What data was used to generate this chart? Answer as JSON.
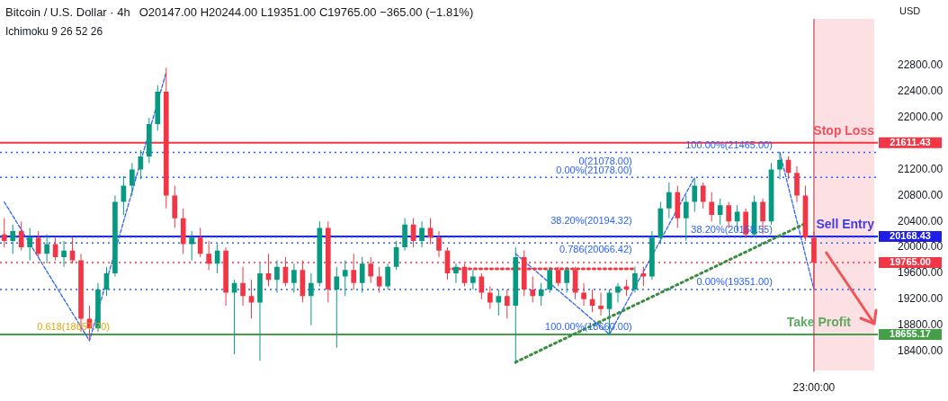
{
  "chart_data": {
    "type": "candlestick",
    "title": "Bitcoin / U.S. Dollar · 4h",
    "ylabel": "USD",
    "annotations": [
      "O20147.00 H20244.00 L19351.00 C19765.00 −365.00 (−1.81%)",
      "Ichimoku 9 26 52 26",
      "21611.43",
      "20168.43",
      "18655.17",
      "19765.00",
      {
        "text": "0(21078.00)",
        "y": 21078
      },
      {
        "text": "38.20%(20194.32)",
        "y": 20194.32
      },
      {
        "text": "100.00%(18660.00)",
        "y": 18660
      },
      {
        "text": "0.618(18657.70)",
        "y": 18657.7
      }
    ],
    "categories": [
      null,
      null,
      null,
      null,
      null,
      null,
      null,
      null,
      null,
      null,
      null,
      null,
      null,
      null,
      null,
      null,
      null,
      null,
      null,
      null,
      null,
      null,
      null,
      null,
      null,
      null,
      null,
      null,
      null,
      null,
      null,
      null,
      null,
      null,
      null,
      null,
      null,
      null,
      null,
      null,
      null,
      null,
      null,
      null,
      null,
      null,
      null,
      null,
      null,
      null,
      null,
      null,
      null,
      null,
      null,
      null,
      null,
      null,
      null,
      null,
      null,
      null,
      null,
      null,
      null,
      null,
      null,
      null,
      null,
      null,
      null,
      null,
      null,
      null,
      null,
      null,
      null,
      null,
      null,
      null,
      null,
      null,
      null,
      null,
      null,
      null,
      null,
      null,
      null,
      null,
      null,
      null,
      null,
      null,
      null,
      "23:00:00",
      null,
      null,
      null,
      null,
      null,
      null,
      null
    ],
    "ohlc": [
      [
        20200,
        20450,
        20000,
        20100
      ],
      [
        20100,
        20350,
        19900,
        20250
      ],
      [
        20250,
        20400,
        19950,
        20000
      ],
      [
        20000,
        20300,
        19800,
        20150
      ],
      [
        20150,
        20250,
        19850,
        19900
      ],
      [
        19900,
        20200,
        19750,
        20050
      ],
      [
        20050,
        20150,
        19800,
        19850
      ],
      [
        19850,
        20100,
        19700,
        19950
      ],
      [
        19950,
        20150,
        19750,
        19800
      ],
      [
        19800,
        19900,
        18700,
        18900
      ],
      [
        18900,
        19100,
        18560,
        18750
      ],
      [
        18750,
        19450,
        18700,
        19350
      ],
      [
        19350,
        19700,
        19250,
        19600
      ],
      [
        19600,
        20800,
        19550,
        20700
      ],
      [
        20700,
        21100,
        20500,
        20950
      ],
      [
        20950,
        21300,
        20800,
        21200
      ],
      [
        21200,
        21500,
        21050,
        21400
      ],
      [
        21400,
        22000,
        21300,
        21900
      ],
      [
        21900,
        22500,
        21800,
        22400
      ],
      [
        22400,
        22770,
        20600,
        20800
      ],
      [
        20800,
        20950,
        20300,
        20450
      ],
      [
        20450,
        20600,
        19900,
        20050
      ],
      [
        20050,
        20250,
        19800,
        20150
      ],
      [
        20150,
        20300,
        19850,
        19900
      ],
      [
        19900,
        20100,
        19650,
        19750
      ],
      [
        19750,
        20050,
        19600,
        19950
      ],
      [
        19950,
        20000,
        19100,
        19300
      ],
      [
        19300,
        19500,
        18350,
        19450
      ],
      [
        19450,
        19700,
        19100,
        19250
      ],
      [
        19250,
        19500,
        18900,
        19150
      ],
      [
        19150,
        19750,
        18250,
        19600
      ],
      [
        19600,
        19900,
        19400,
        19500
      ],
      [
        19500,
        19800,
        19300,
        19700
      ],
      [
        19700,
        19850,
        19400,
        19450
      ],
      [
        19450,
        19750,
        19300,
        19650
      ],
      [
        19650,
        19800,
        19150,
        19250
      ],
      [
        19250,
        19600,
        18800,
        19450
      ],
      [
        19450,
        20400,
        19400,
        20300
      ],
      [
        20300,
        20400,
        19150,
        19350
      ],
      [
        19350,
        19700,
        18450,
        19550
      ],
      [
        19550,
        19800,
        19250,
        19650
      ],
      [
        19650,
        19900,
        19350,
        19450
      ],
      [
        19450,
        19850,
        19300,
        19750
      ],
      [
        19750,
        19850,
        19450,
        19550
      ],
      [
        19550,
        19700,
        19300,
        19400
      ],
      [
        19400,
        19750,
        19350,
        19700
      ],
      [
        19700,
        20100,
        19650,
        20000
      ],
      [
        20000,
        20450,
        19950,
        20350
      ],
      [
        20350,
        20450,
        20000,
        20100
      ],
      [
        20100,
        20400,
        20000,
        20300
      ],
      [
        20300,
        20450,
        20050,
        20150
      ],
      [
        20150,
        20250,
        19850,
        19950
      ],
      [
        19950,
        20000,
        19500,
        19600
      ],
      [
        19600,
        19750,
        19450,
        19700
      ],
      [
        19700,
        19750,
        19400,
        19450
      ],
      [
        19450,
        19650,
        19350,
        19550
      ],
      [
        19550,
        19600,
        19200,
        19300
      ],
      [
        19300,
        19400,
        19050,
        19150
      ],
      [
        19150,
        19350,
        18950,
        19250
      ],
      [
        19250,
        19350,
        18900,
        19100
      ],
      [
        19100,
        20000,
        18200,
        19850
      ],
      [
        19850,
        19950,
        19250,
        19350
      ],
      [
        19350,
        19550,
        19150,
        19250
      ],
      [
        19250,
        19450,
        19100,
        19350
      ],
      [
        19350,
        19700,
        19300,
        19650
      ],
      [
        19650,
        19700,
        19400,
        19450
      ],
      [
        19450,
        19700,
        19300,
        19650
      ],
      [
        19650,
        19700,
        19200,
        19300
      ],
      [
        19300,
        19450,
        19100,
        19200
      ],
      [
        19200,
        19350,
        19000,
        19100
      ],
      [
        19100,
        19300,
        18950,
        19050
      ],
      [
        19050,
        19350,
        18660,
        19300
      ],
      [
        19300,
        19450,
        19150,
        19400
      ],
      [
        19400,
        19500,
        19250,
        19350
      ],
      [
        19350,
        19700,
        19300,
        19600
      ],
      [
        19600,
        19700,
        19400,
        19550
      ],
      [
        19550,
        20250,
        19500,
        20150
      ],
      [
        20150,
        20700,
        20050,
        20600
      ],
      [
        20600,
        21000,
        20450,
        20850
      ],
      [
        20850,
        20950,
        20300,
        20450
      ],
      [
        20450,
        20800,
        20100,
        20700
      ],
      [
        20700,
        21078,
        20550,
        20950
      ],
      [
        20950,
        21000,
        20600,
        20700
      ],
      [
        20700,
        20850,
        20400,
        20500
      ],
      [
        20500,
        20750,
        20350,
        20650
      ],
      [
        20650,
        20700,
        20300,
        20400
      ],
      [
        20400,
        20650,
        20250,
        20550
      ],
      [
        20550,
        20600,
        20150,
        20200
      ],
      [
        20200,
        20800,
        20150,
        20700
      ],
      [
        20700,
        20750,
        20200,
        20400
      ],
      [
        20400,
        21300,
        20350,
        21200
      ],
      [
        21200,
        21465,
        21050,
        21350
      ],
      [
        21350,
        21400,
        21050,
        21150
      ],
      [
        21150,
        21250,
        20700,
        20800
      ],
      [
        20800,
        20950,
        20100,
        20150
      ],
      [
        20147,
        20244,
        19351,
        19765
      ],
      null,
      null,
      null,
      null,
      null,
      null,
      null
    ],
    "colors": [
      "#f23645",
      "#089981",
      "#f23645",
      "#089981",
      "#f23645",
      "#089981",
      "#f23645",
      "#089981",
      "#f23645",
      "#f23645",
      "#f23645",
      "#089981",
      "#089981",
      "#089981",
      "#089981",
      "#089981",
      "#089981",
      "#089981",
      "#089981",
      "#f23645",
      "#f23645",
      "#f23645",
      "#089981",
      "#f23645",
      "#f23645",
      "#089981",
      "#f23645",
      "#089981",
      "#f23645",
      "#f23645",
      "#089981",
      "#f23645",
      "#089981",
      "#f23645",
      "#089981",
      "#f23645",
      "#089981",
      "#089981",
      "#f23645",
      "#089981",
      "#089981",
      "#f23645",
      "#089981",
      "#f23645",
      "#f23645",
      "#089981",
      "#089981",
      "#089981",
      "#f23645",
      "#089981",
      "#f23645",
      "#f23645",
      "#f23645",
      "#089981",
      "#f23645",
      "#089981",
      "#f23645",
      "#f23645",
      "#089981",
      "#f23645",
      "#089981",
      "#f23645",
      "#f23645",
      "#089981",
      "#089981",
      "#f23645",
      "#089981",
      "#f23645",
      "#f23645",
      "#f23645",
      "#f23645",
      "#089981",
      "#089981",
      "#f23645",
      "#089981",
      "#f23645",
      "#089981",
      "#089981",
      "#089981",
      "#f23645",
      "#089981",
      "#089981",
      "#f23645",
      "#f23645",
      "#089981",
      "#f23645",
      "#089981",
      "#f23645",
      "#089981",
      "#f23645",
      "#089981",
      "#089981",
      "#f23645",
      "#f23645",
      "#f23645",
      "#f23645",
      null,
      null,
      null,
      null,
      null,
      null,
      null
    ],
    "series": [
      {
        "type": "line",
        "color": "#388e3c",
        "line_style": "dotted",
        "values": [
          null,
          null,
          null,
          null,
          null,
          null,
          null,
          null,
          null,
          null,
          null,
          null,
          null,
          null,
          null,
          null,
          null,
          null,
          null,
          null,
          null,
          null,
          null,
          null,
          null,
          null,
          null,
          null,
          null,
          null,
          null,
          null,
          null,
          null,
          null,
          null,
          null,
          null,
          null,
          null,
          null,
          null,
          null,
          null,
          null,
          null,
          null,
          null,
          null,
          null,
          null,
          null,
          null,
          null,
          null,
          null,
          null,
          null,
          null,
          null,
          18230,
          null,
          null,
          null,
          null,
          null,
          null,
          null,
          null,
          null,
          null,
          null,
          null,
          null,
          null,
          null,
          null,
          null,
          null,
          null,
          null,
          null,
          null,
          null,
          null,
          null,
          null,
          null,
          null,
          null,
          null,
          null,
          null,
          null,
          20370,
          null,
          null,
          null,
          null,
          null,
          null,
          null,
          null
        ]
      },
      {
        "type": "line",
        "color": "#f23645",
        "line_style": "dotted",
        "values": [
          null,
          null,
          null,
          null,
          null,
          null,
          null,
          null,
          null,
          null,
          null,
          null,
          null,
          null,
          null,
          null,
          null,
          null,
          null,
          null,
          null,
          null,
          null,
          null,
          null,
          null,
          null,
          null,
          null,
          null,
          null,
          null,
          null,
          null,
          null,
          null,
          null,
          null,
          null,
          null,
          null,
          null,
          null,
          null,
          null,
          null,
          null,
          null,
          null,
          null,
          null,
          null,
          19670,
          null,
          null,
          null,
          null,
          null,
          null,
          null,
          null,
          null,
          null,
          null,
          null,
          null,
          null,
          null,
          null,
          null,
          null,
          null,
          null,
          null,
          19670,
          null,
          null,
          null,
          null,
          null,
          null,
          null,
          null,
          null,
          null,
          null,
          null,
          null,
          null,
          null,
          null,
          null,
          null,
          null,
          null,
          null,
          null,
          null,
          null,
          null,
          null,
          null,
          null
        ]
      },
      {
        "type": "line",
        "color": "#2962ff",
        "line_style": "dashed",
        "values": [
          20700,
          null,
          null,
          null,
          null,
          null,
          null,
          null,
          null,
          null,
          18560,
          null,
          null,
          null,
          null,
          null,
          null,
          null,
          null,
          22700,
          null,
          null,
          null,
          null,
          null,
          null,
          null,
          null,
          null,
          null,
          null,
          null,
          null,
          null,
          null,
          null,
          null,
          null,
          null,
          null,
          null,
          null,
          null,
          null,
          null,
          null,
          null,
          null,
          null,
          null,
          null,
          null,
          null,
          null,
          null,
          null,
          null,
          null,
          null,
          null,
          null,
          null,
          null,
          null,
          null,
          null,
          null,
          null,
          null,
          null,
          null,
          null,
          null,
          null,
          null,
          null,
          null,
          null,
          null,
          null,
          null,
          null,
          null,
          null,
          null,
          null,
          null,
          null,
          null,
          null,
          null,
          null,
          null,
          null,
          null,
          null,
          null,
          null,
          null,
          null,
          null,
          null,
          null
        ]
      },
      {
        "type": "line",
        "color": "#2962ff",
        "line_style": "dashed",
        "values": [
          null,
          null,
          null,
          null,
          null,
          null,
          null,
          null,
          null,
          null,
          null,
          null,
          null,
          null,
          null,
          null,
          null,
          null,
          null,
          null,
          null,
          null,
          null,
          null,
          null,
          null,
          null,
          null,
          null,
          null,
          null,
          null,
          null,
          null,
          null,
          null,
          null,
          null,
          null,
          null,
          null,
          null,
          null,
          null,
          null,
          null,
          null,
          null,
          null,
          null,
          null,
          null,
          null,
          null,
          null,
          null,
          null,
          null,
          null,
          null,
          19900,
          null,
          null,
          null,
          null,
          null,
          null,
          null,
          null,
          null,
          null,
          18660,
          null,
          null,
          null,
          null,
          null,
          null,
          null,
          null,
          null,
          21078,
          null,
          null,
          null,
          null,
          null,
          null,
          null,
          null,
          null,
          null,
          null,
          null,
          null,
          null,
          null,
          null,
          null,
          null,
          null,
          null,
          null
        ]
      },
      {
        "type": "line",
        "color": "#2962ff",
        "line_style": "dashed",
        "values": [
          null,
          null,
          null,
          null,
          null,
          null,
          null,
          null,
          null,
          null,
          null,
          null,
          null,
          null,
          null,
          null,
          null,
          null,
          null,
          null,
          null,
          null,
          null,
          null,
          null,
          null,
          null,
          null,
          null,
          null,
          null,
          null,
          null,
          null,
          null,
          null,
          null,
          null,
          null,
          null,
          null,
          null,
          null,
          null,
          null,
          null,
          null,
          null,
          null,
          null,
          null,
          null,
          null,
          null,
          null,
          null,
          null,
          null,
          null,
          null,
          null,
          null,
          null,
          null,
          null,
          null,
          null,
          null,
          null,
          null,
          null,
          null,
          null,
          null,
          null,
          null,
          null,
          null,
          null,
          null,
          null,
          null,
          null,
          null,
          null,
          null,
          null,
          null,
          null,
          null,
          null,
          21465,
          null,
          null,
          null,
          19351,
          null,
          null,
          null,
          null,
          null,
          null,
          null
        ]
      }
    ],
    "ref_lines": [
      {
        "axis": "y",
        "value": 21611.43,
        "label": "Stop Loss",
        "color": "#f23645",
        "line_style": "solid"
      },
      {
        "axis": "y",
        "value": 20168.43,
        "label": "Sell Entry",
        "color": "#1e1ee6",
        "line_style": "solid"
      },
      {
        "axis": "y",
        "value": 18655.17,
        "label": "Take Profit",
        "color": "#43a047",
        "line_style": "solid"
      },
      {
        "axis": "y",
        "value": 19765,
        "color": "#f23645",
        "line_style": "dotted"
      },
      {
        "axis": "y",
        "value": 21465,
        "label": "100.00%(21465.00)",
        "color": "#2962ff",
        "line_style": "dotted"
      },
      {
        "axis": "y",
        "value": 21078,
        "label": "0.00%(21078.00)",
        "color": "#2962ff",
        "line_style": "dotted"
      },
      {
        "axis": "y",
        "value": 20158.55,
        "label": "38.20%(20158.55)",
        "color": "#2962ff",
        "line_style": "dotted"
      },
      {
        "axis": "y",
        "value": 20066.42,
        "label": "0.786(20066.42)",
        "color": "#2962ff",
        "line_style": "dotted"
      },
      {
        "axis": "y",
        "value": 19351,
        "label": "0.00%(19351.00)",
        "color": "#2962ff",
        "line_style": "dotted"
      },
      {
        "axis": "x",
        "value": "23:00:00",
        "color": "#b22833",
        "line_style": "solid"
      }
    ],
    "ylim": [
      18080,
      23520
    ],
    "yticks": [
      {
        "value": 18400,
        "label": "18400.00"
      },
      {
        "value": 18800,
        "label": "18800.00"
      },
      {
        "value": 19200,
        "label": "19200.00"
      },
      {
        "value": 19600,
        "label": "19600.00"
      },
      {
        "value": 20000,
        "label": "20000.00"
      },
      {
        "value": 20400,
        "label": "20400.00"
      },
      {
        "value": 20800,
        "label": "20800.00"
      },
      {
        "value": 21200,
        "label": "21200.00"
      },
      {
        "value": 21600,
        "label": null
      },
      {
        "value": 22000,
        "label": "22000.00"
      },
      {
        "value": 22400,
        "label": "22400.00"
      },
      {
        "value": 22800,
        "label": "22800.00"
      }
    ],
    "grid": false,
    "legend": false
  }
}
